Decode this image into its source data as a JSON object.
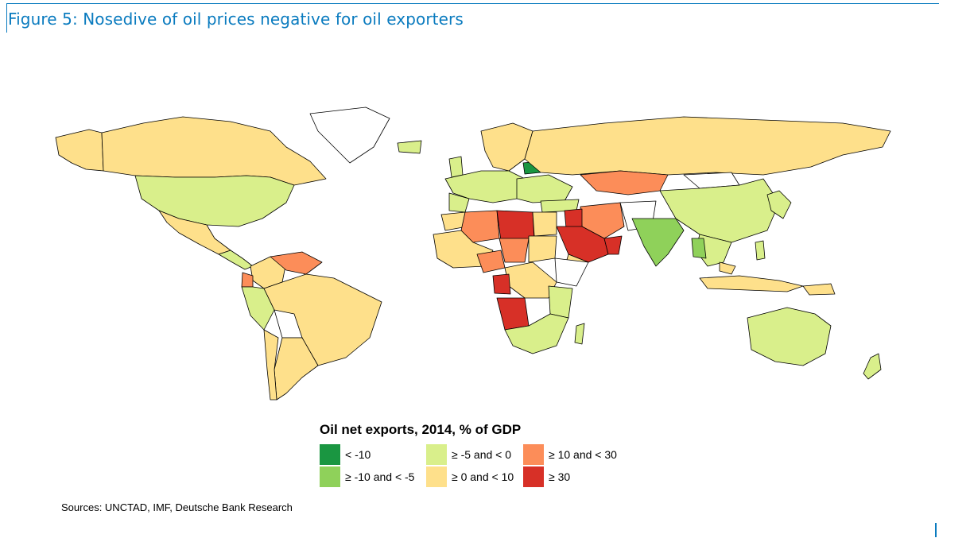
{
  "figure": {
    "title": "Figure 5: Nosedive of oil prices negative for oil exporters",
    "sources": "Sources: UNCTAD, IMF, Deutsche Bank Research"
  },
  "legend": {
    "title": "Oil net exports, 2014, % of GDP",
    "items": [
      {
        "label": "< -10",
        "color": "#1a9641"
      },
      {
        "label": "≥ -10 and < -5",
        "color": "#8fd15a"
      },
      {
        "label": "≥ -5 and < 0",
        "color": "#d9ef8b"
      },
      {
        "label": "≥ 0 and < 10",
        "color": "#fee08b"
      },
      {
        "label": "≥ 10 and < 30",
        "color": "#fc8d59"
      },
      {
        "label": "≥ 30",
        "color": "#d73027"
      }
    ]
  },
  "colors": {
    "accent": "#0a7bbf",
    "no_data": "#ffffff",
    "border": "#000000"
  }
}
